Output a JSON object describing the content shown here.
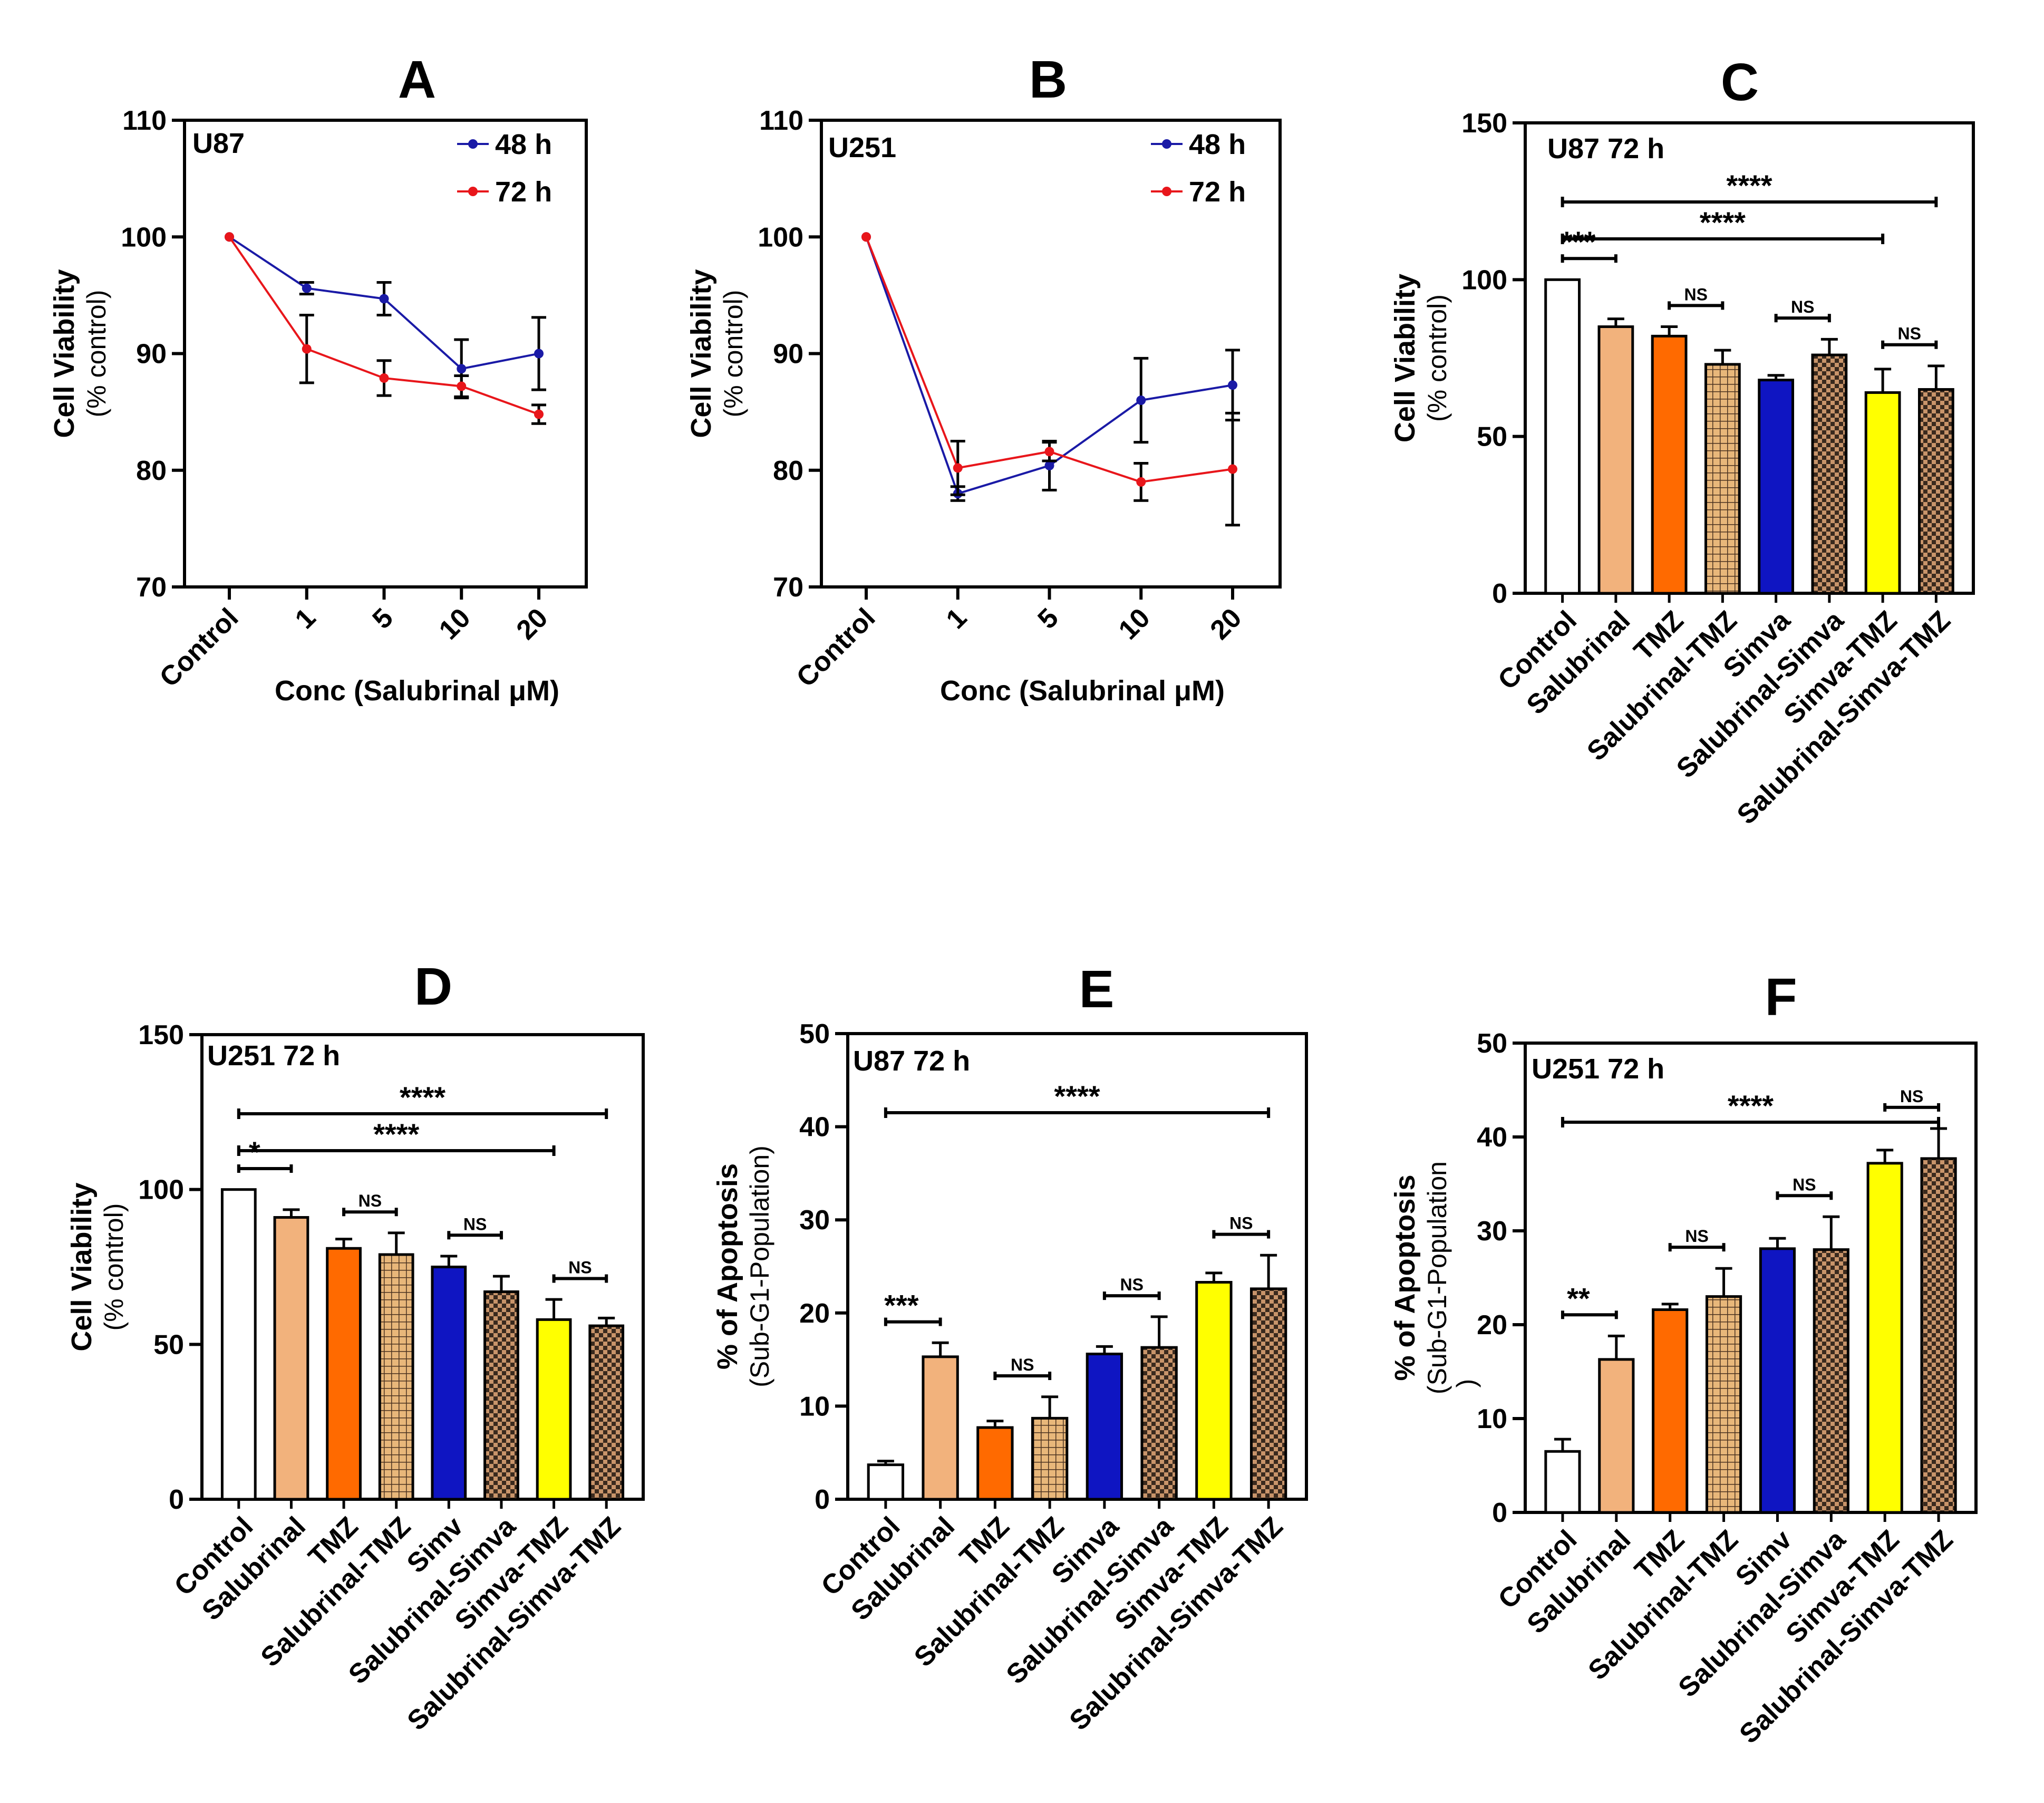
{
  "chart_data": [
    {
      "id": "A",
      "type": "line",
      "panel_label": "A",
      "inset_label": "U87",
      "xlabel": "Conc (Salubrinal μM)",
      "ylabel": "Cell Viability",
      "ylabel_sub": "(% control)",
      "categories": [
        "Control",
        "1",
        "5",
        "10",
        "20"
      ],
      "ylim": [
        70,
        110
      ],
      "yticks": [
        70,
        80,
        90,
        100,
        110
      ],
      "series": [
        {
          "name": "48 h",
          "color": "#1a1aa6",
          "values": [
            100,
            95.6,
            94.7,
            88.7,
            90.0
          ],
          "errors": [
            0,
            0.5,
            1.4,
            2.5,
            3.1
          ]
        },
        {
          "name": "72 h",
          "color": "#e8161b",
          "values": [
            100,
            90.4,
            87.9,
            87.2,
            84.8
          ],
          "errors": [
            0,
            2.9,
            1.5,
            0.9,
            0.8
          ]
        }
      ]
    },
    {
      "id": "B",
      "type": "line",
      "panel_label": "B",
      "inset_label": "U251",
      "xlabel": "Conc (Salubrinal μM)",
      "ylabel": "Cell Viability",
      "ylabel_sub": "(% control)",
      "categories": [
        "Control",
        "1",
        "5",
        "10",
        "20"
      ],
      "ylim": [
        70,
        110
      ],
      "yticks": [
        70,
        80,
        90,
        100,
        110
      ],
      "series": [
        {
          "name": "48 h",
          "color": "#1a1aa6",
          "values": [
            100,
            78.0,
            80.4,
            86.0,
            87.3
          ],
          "errors": [
            0,
            0.6,
            2.1,
            3.6,
            3.0
          ]
        },
        {
          "name": "72 h",
          "color": "#e8161b",
          "values": [
            100,
            80.2,
            81.6,
            79.0,
            80.1
          ],
          "errors": [
            0,
            2.3,
            0.8,
            1.6,
            4.8
          ]
        }
      ]
    },
    {
      "id": "C",
      "type": "bar",
      "panel_label": "C",
      "inset_label": "U87 72 h",
      "ylabel": "Cell Viability",
      "ylabel_sub": "(% control)",
      "ylim": [
        0,
        150
      ],
      "yticks": [
        0,
        50,
        100,
        150
      ],
      "categories": [
        "Control",
        "Salubrinal",
        "TMZ",
        "Salubrinal-TMZ",
        "Simva",
        "Salubrinal-Simva",
        "Simva-TMZ",
        "Salubrinal-Simva-TMZ"
      ],
      "values": [
        100,
        85,
        82,
        73,
        68,
        76,
        64,
        65
      ],
      "errors": [
        0,
        2.5,
        3,
        4.5,
        1.5,
        5,
        7.5,
        7.5
      ],
      "significance": [
        {
          "from": 0,
          "to": 7,
          "label": "****"
        },
        {
          "from": 0,
          "to": 6,
          "label": "****"
        },
        {
          "from": 0,
          "to": 1,
          "label": "***"
        },
        {
          "from": 2,
          "to": 3,
          "label": "NS"
        },
        {
          "from": 4,
          "to": 5,
          "label": "NS"
        },
        {
          "from": 6,
          "to": 7,
          "label": "NS"
        }
      ]
    },
    {
      "id": "D",
      "type": "bar",
      "panel_label": "D",
      "inset_label": "U251 72 h",
      "ylabel": "Cell Viability",
      "ylabel_sub": "(% control)",
      "ylim": [
        0,
        150
      ],
      "yticks": [
        0,
        50,
        100,
        150
      ],
      "categories": [
        "Control",
        "Salubrinal",
        "TMZ",
        "Salubrinal-TMZ",
        "Simv",
        "Salubrinal-Simva",
        "Simva-TMZ",
        "Salubrinal-Simva-TMZ"
      ],
      "values": [
        100,
        91,
        81,
        79,
        75,
        67,
        58,
        56
      ],
      "errors": [
        0,
        2.5,
        3,
        7,
        3.5,
        5,
        6.5,
        2.5
      ],
      "significance": [
        {
          "from": 0,
          "to": 7,
          "label": "****"
        },
        {
          "from": 0,
          "to": 6,
          "label": "****"
        },
        {
          "from": 0,
          "to": 1,
          "label": "*"
        },
        {
          "from": 2,
          "to": 3,
          "label": "NS"
        },
        {
          "from": 4,
          "to": 5,
          "label": "NS"
        },
        {
          "from": 6,
          "to": 7,
          "label": "NS"
        }
      ]
    },
    {
      "id": "E",
      "type": "bar",
      "panel_label": "E",
      "inset_label": "U87 72 h",
      "ylabel": "% of Apoptosis",
      "ylabel_sub": "(Sub-G1-Population)",
      "ylim": [
        0,
        50
      ],
      "yticks": [
        0,
        10,
        20,
        30,
        40,
        50
      ],
      "categories": [
        "Control",
        "Salubrinal",
        "TMZ",
        "Salubrinal-TMZ",
        "Simva",
        "Salubrinal-Simva",
        "Simva-TMZ",
        "Salubrinal-Simva-TMZ"
      ],
      "values": [
        3.7,
        15.3,
        7.7,
        8.7,
        15.6,
        16.3,
        23.3,
        22.6
      ],
      "errors": [
        0.4,
        1.5,
        0.7,
        2.3,
        0.8,
        3.3,
        1.0,
        3.6
      ],
      "significance": [
        {
          "from": 0,
          "to": 7,
          "label": "****"
        },
        {
          "from": 0,
          "to": 1,
          "label": "***"
        },
        {
          "from": 2,
          "to": 3,
          "label": "NS"
        },
        {
          "from": 4,
          "to": 5,
          "label": "NS"
        },
        {
          "from": 6,
          "to": 7,
          "label": "NS"
        }
      ]
    },
    {
      "id": "F",
      "type": "bar",
      "panel_label": "F",
      "inset_label": "U251 72 h",
      "ylabel": "% of Apoptosis",
      "ylabel_sub": "(Sub-G1-Population",
      "ylabel_sub2": ")",
      "ylim": [
        0,
        50
      ],
      "yticks": [
        0,
        10,
        20,
        30,
        40,
        50
      ],
      "categories": [
        "Control",
        "Salubrinal",
        "TMZ",
        "Salubrinal-TMZ",
        "Simv",
        "Salubrinal-Simva",
        "Simva-TMZ",
        "Salubrinal-Simva-TMZ"
      ],
      "values": [
        6.5,
        16.3,
        21.6,
        23.0,
        28.1,
        28.0,
        37.2,
        37.7
      ],
      "errors": [
        1.3,
        2.5,
        0.6,
        3.0,
        1.1,
        3.5,
        1.4,
        3.2
      ],
      "significance": [
        {
          "from": 0,
          "to": 7,
          "label": "****"
        },
        {
          "from": 0,
          "to": 1,
          "label": "**"
        },
        {
          "from": 2,
          "to": 3,
          "label": "NS"
        },
        {
          "from": 4,
          "to": 5,
          "label": "NS"
        },
        {
          "from": 6,
          "to": 7,
          "label": "NS"
        }
      ]
    }
  ],
  "bar_styles": [
    {
      "fill": "#ffffff",
      "pattern": "none"
    },
    {
      "fill": "#f2b27c",
      "pattern": "none"
    },
    {
      "fill": "#ff6a00",
      "pattern": "none"
    },
    {
      "fill": "#e8b77a",
      "pattern": "grid"
    },
    {
      "fill": "#0f15c2",
      "pattern": "none"
    },
    {
      "fill": "#c8946a",
      "pattern": "check"
    },
    {
      "fill": "#ffff00",
      "pattern": "none"
    },
    {
      "fill": "#c8946a",
      "pattern": "check"
    }
  ]
}
